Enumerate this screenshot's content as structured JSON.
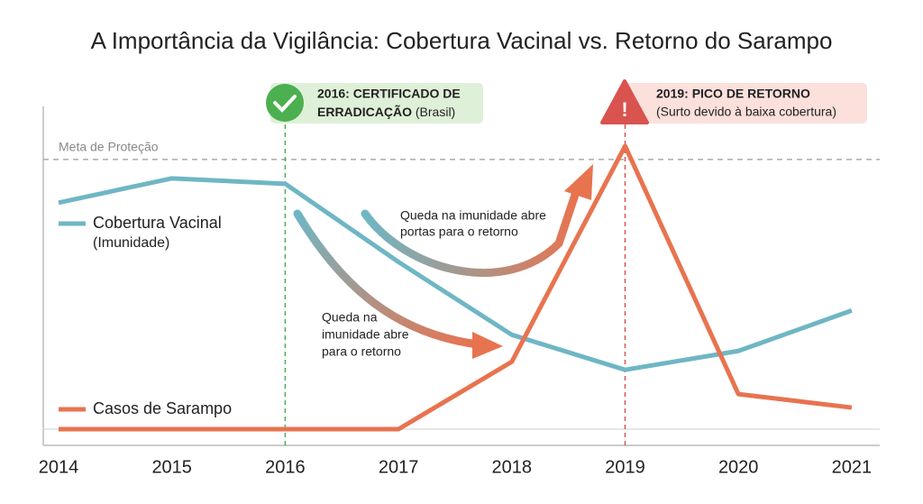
{
  "chart_data": {
    "type": "line",
    "title": "A Importância da Vigilância: Cobertura Vacinal vs. Retorno do Sarampo",
    "categories": [
      "2014",
      "2015",
      "2016",
      "2017",
      "2018",
      "2019",
      "2020",
      "2021"
    ],
    "ylim": [
      0,
      110
    ],
    "series": [
      {
        "name": "Cobertura Vacinal",
        "sublabel": "(Imunidade)",
        "color": "#6fb6c4",
        "values": [
          84,
          93,
          91,
          62,
          35,
          22,
          29,
          44
        ]
      },
      {
        "name": "Casos de Sarampo",
        "color": "#e8734f",
        "values": [
          0,
          0,
          0,
          0,
          25,
          105,
          13,
          8
        ]
      }
    ],
    "target": {
      "label": "Meta de Proteção",
      "value": 100
    },
    "events": [
      {
        "x": "2016",
        "color": "#4caf50",
        "bold": [
          "2016: CERTIFICADO DE",
          "ERRADICAÇÃO"
        ],
        "detail": "(Brasil)"
      },
      {
        "x": "2019",
        "color": "#d9534f",
        "bold": [
          "2019: PICO DE RETORNO"
        ],
        "detail": "(Surto devido à baixa cobertura)"
      }
    ],
    "notes": [
      {
        "lines": [
          "Queda na imunidade abre",
          "portas para o retorno"
        ]
      },
      {
        "lines": [
          "Queda na",
          "imunidade abre",
          "para o retorno"
        ]
      }
    ]
  }
}
